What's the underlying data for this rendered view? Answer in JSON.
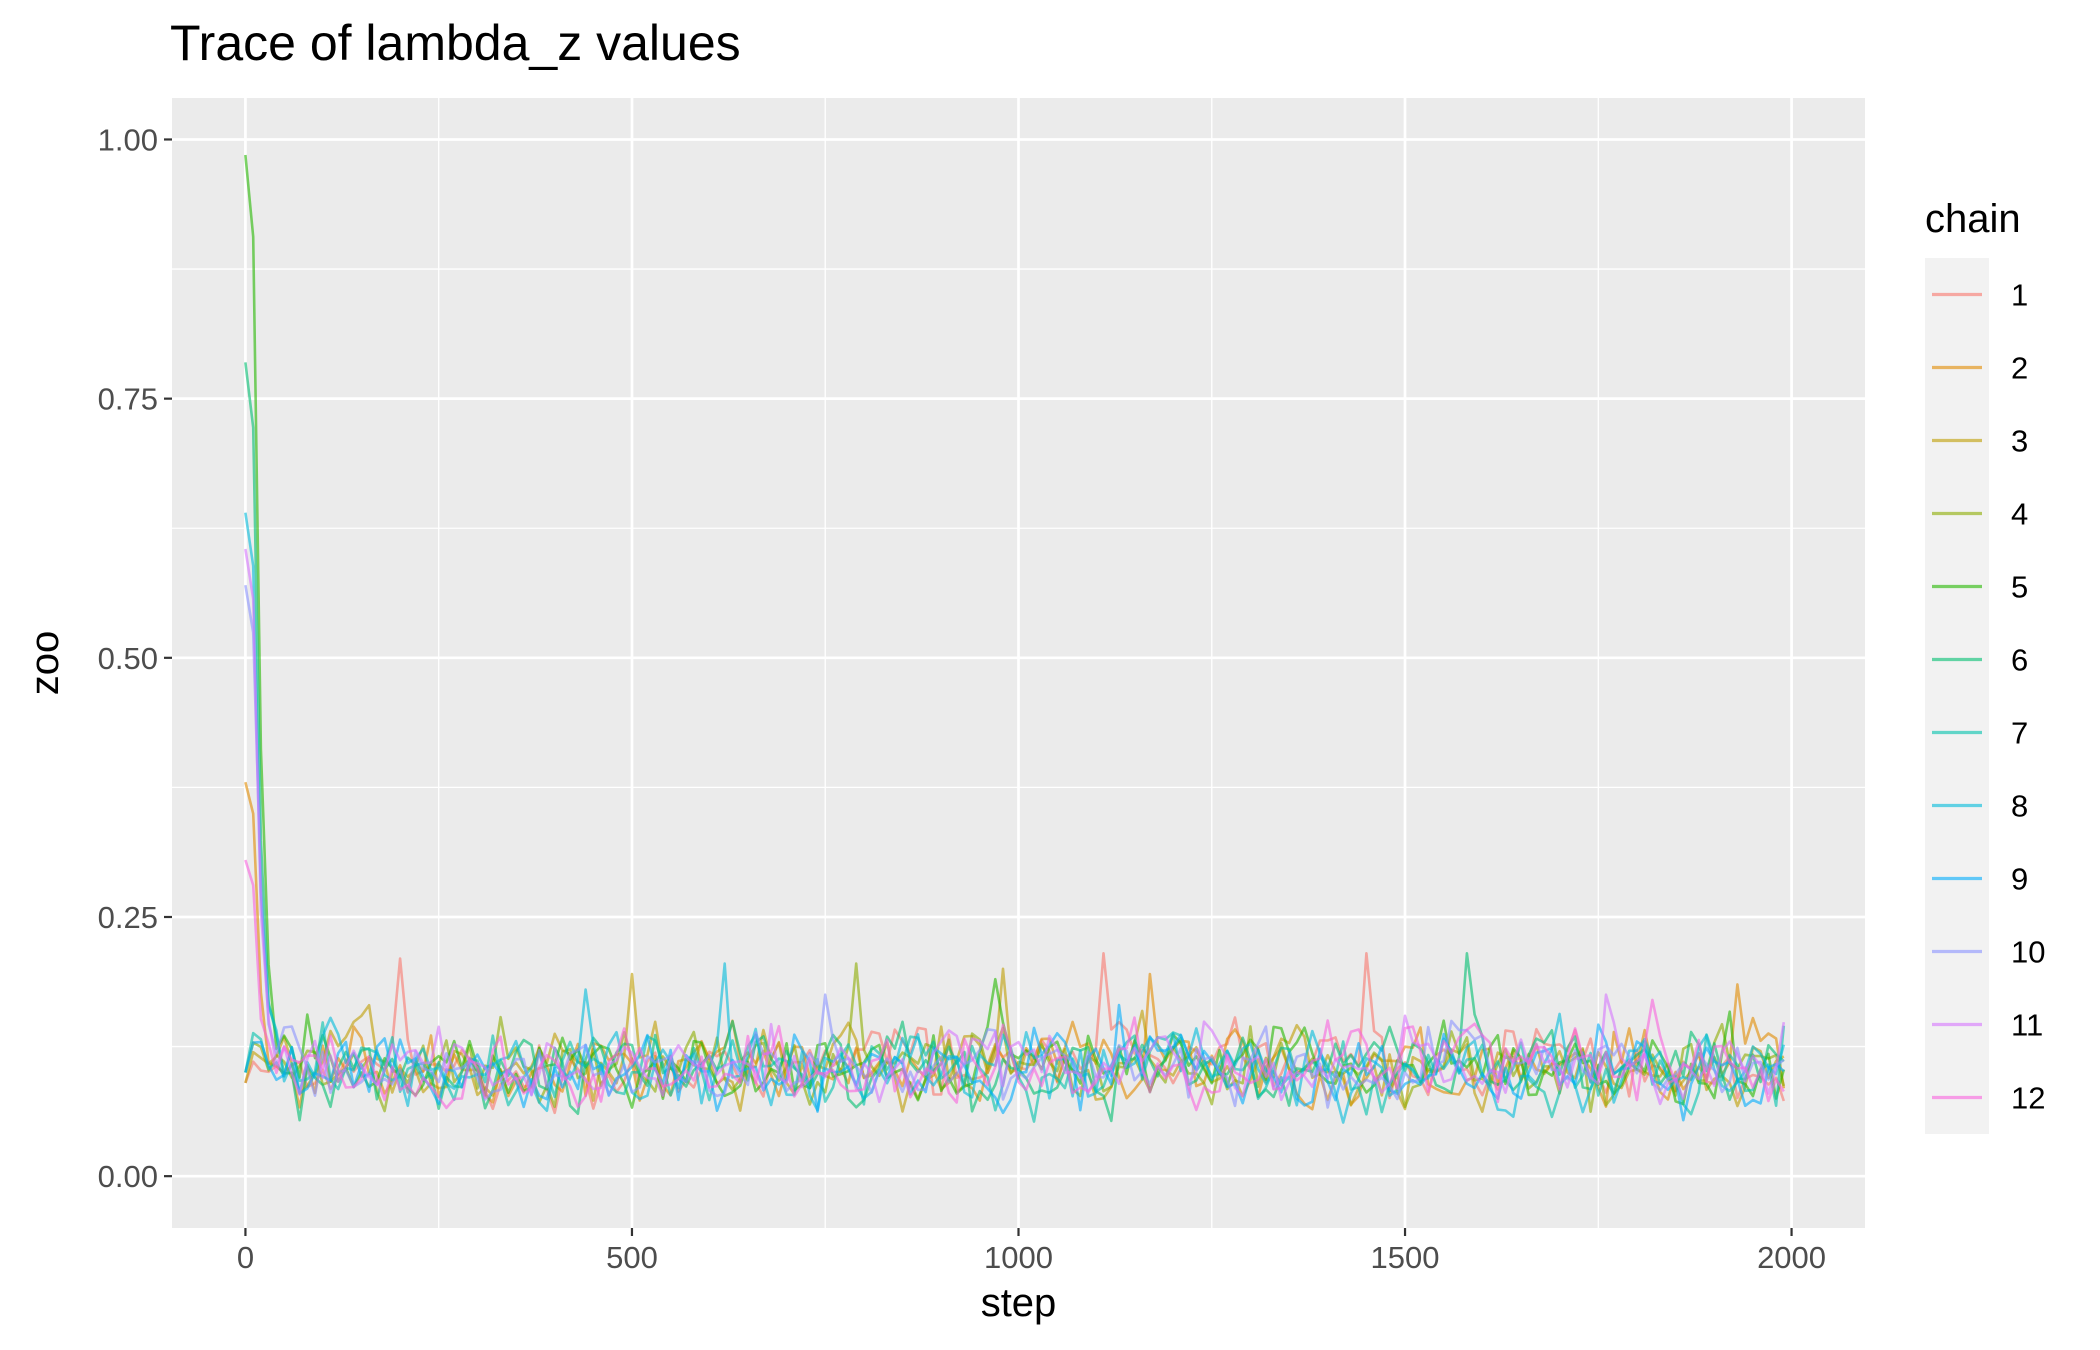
{
  "chart_data": {
    "type": "line",
    "title": "Trace of lambda_z values",
    "xlabel": "step",
    "ylabel": "zoo",
    "xlim": [
      -95,
      2095
    ],
    "ylim": [
      -0.05,
      1.04
    ],
    "x_ticks": [
      0,
      500,
      1000,
      1500,
      2000
    ],
    "x_tick_labels": [
      "0",
      "500",
      "1000",
      "1500",
      "2000"
    ],
    "y_ticks": [
      0.0,
      0.25,
      0.5,
      0.75,
      1.0
    ],
    "y_tick_labels": [
      "0.00",
      "0.25",
      "0.50",
      "0.75",
      "1.00"
    ],
    "grid": true,
    "panel_background": "#ebebeb",
    "line_alpha": 0.6,
    "legend": {
      "title": "chain",
      "position": "right",
      "entries": [
        "1",
        "2",
        "3",
        "4",
        "5",
        "6",
        "7",
        "8",
        "9",
        "10",
        "11",
        "12"
      ]
    },
    "sampling": {
      "thin": 10,
      "steps": 200,
      "burn_in_points": 5,
      "stationary_mean": 0.105,
      "stationary_sd": 0.025
    },
    "series": [
      {
        "name": "1",
        "color": "#F8766D",
        "start": 0.09,
        "peak": 0.12,
        "spikes": [
          [
            1110,
            0.215
          ],
          [
            1450,
            0.215
          ],
          [
            200,
            0.21
          ]
        ]
      },
      {
        "name": "2",
        "color": "#E18A00",
        "start": 0.38,
        "peak": 0.38,
        "spikes": [
          [
            1930,
            0.185
          ],
          [
            1170,
            0.195
          ]
        ]
      },
      {
        "name": "3",
        "color": "#BE9C00",
        "start": 0.09,
        "peak": 0.13,
        "spikes": [
          [
            500,
            0.195
          ],
          [
            980,
            0.2
          ]
        ]
      },
      {
        "name": "4",
        "color": "#8CAB00",
        "start": 0.1,
        "peak": 0.14,
        "spikes": [
          [
            790,
            0.205
          ]
        ]
      },
      {
        "name": "5",
        "color": "#24B700",
        "start": 0.985,
        "peak": 0.985,
        "spikes": [
          [
            970,
            0.19
          ],
          [
            515,
            0.185
          ]
        ]
      },
      {
        "name": "6",
        "color": "#00BE70",
        "start": 0.785,
        "peak": 0.785,
        "spikes": [
          [
            1580,
            0.215
          ]
        ]
      },
      {
        "name": "7",
        "color": "#00C1AB",
        "start": 0.1,
        "peak": 0.15,
        "spikes": [
          [
            1990,
            0.145
          ]
        ]
      },
      {
        "name": "8",
        "color": "#00BBDA",
        "start": 0.64,
        "peak": 0.64,
        "spikes": [
          [
            620,
            0.205
          ],
          [
            440,
            0.18
          ]
        ]
      },
      {
        "name": "9",
        "color": "#00ACFC",
        "start": 0.1,
        "peak": 0.14,
        "spikes": [
          [
            1130,
            0.165
          ]
        ]
      },
      {
        "name": "10",
        "color": "#8B93FF",
        "start": 0.57,
        "peak": 0.57,
        "spikes": [
          [
            750,
            0.175
          ]
        ]
      },
      {
        "name": "11",
        "color": "#D575FE",
        "start": 0.605,
        "peak": 0.605,
        "spikes": [
          [
            1760,
            0.175
          ]
        ]
      },
      {
        "name": "12",
        "color": "#F962DD",
        "start": 0.305,
        "peak": 0.305,
        "spikes": [
          [
            1820,
            0.17
          ]
        ]
      }
    ]
  }
}
